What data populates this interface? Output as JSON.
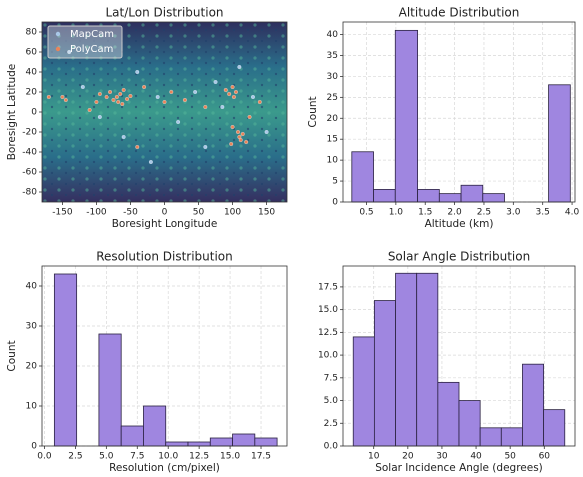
{
  "chart_data": [
    {
      "type": "scatter",
      "title": "Lat/Lon Distribution",
      "xlabel": "Boresight Longitude",
      "ylabel": "Boresight Latitude",
      "xlim": [
        -180,
        180
      ],
      "ylim": [
        -90,
        90
      ],
      "xticks": [
        -150,
        -100,
        -50,
        0,
        50,
        100,
        150
      ],
      "yticks": [
        -80,
        -60,
        -40,
        -20,
        0,
        20,
        40,
        60,
        80
      ],
      "grid": false,
      "legend": "upper left",
      "series": [
        {
          "name": "MapCam",
          "color": "#a9c8e8",
          "x": [
            -120,
            -95,
            -60,
            -40,
            -10,
            20,
            45,
            60,
            85,
            130,
            150,
            -140,
            -20,
            75,
            110
          ],
          "y": [
            25,
            -5,
            -25,
            40,
            15,
            -10,
            20,
            -35,
            5,
            15,
            -20,
            60,
            -50,
            30,
            45
          ]
        },
        {
          "name": "PolyCam",
          "color": "#e8845a",
          "x": [
            -150,
            -145,
            -100,
            -95,
            -85,
            -80,
            -75,
            -70,
            -68,
            -65,
            -62,
            -60,
            -55,
            -50,
            -110,
            -30,
            0,
            10,
            90,
            95,
            100,
            102,
            105,
            108,
            110,
            112,
            115,
            120,
            100,
            98,
            60,
            30,
            -170,
            140,
            125,
            -40
          ],
          "y": [
            15,
            12,
            10,
            18,
            15,
            20,
            12,
            15,
            10,
            18,
            8,
            22,
            13,
            16,
            2,
            25,
            10,
            20,
            22,
            18,
            25,
            15,
            20,
            -20,
            -25,
            -28,
            -22,
            -30,
            -15,
            -32,
            5,
            12,
            15,
            10,
            -5,
            -35
          ]
        }
      ]
    },
    {
      "type": "histogram",
      "title": "Altitude Distribution",
      "xlabel": "Altitude (km)",
      "ylabel": "Count",
      "bins": [
        0.25,
        0.62,
        0.99,
        1.37,
        1.74,
        2.11,
        2.48,
        2.85,
        3.23,
        3.6,
        3.97
      ],
      "values": [
        12,
        3,
        41,
        3,
        2,
        4,
        2,
        0,
        0,
        28
      ],
      "color": "#9f86e0",
      "xlim": [
        0.1,
        4.05
      ],
      "ylim": [
        0,
        43
      ],
      "xticks": [
        0.5,
        {
          "value": 1,
          "label": "1.0"
        },
        1.5,
        {
          "value": 2,
          "label": "2.0"
        },
        2.5,
        {
          "value": 3,
          "label": "3.0"
        },
        3.5,
        {
          "value": 4,
          "label": "4.0"
        }
      ],
      "yticks": [
        0,
        5,
        10,
        15,
        20,
        25,
        30,
        35,
        40
      ],
      "grid": true
    },
    {
      "type": "histogram",
      "title": "Resolution Distribution",
      "xlabel": "Resolution (cm/pixel)",
      "ylabel": "Count",
      "bins": [
        0.8,
        2.6,
        4.4,
        6.2,
        8.0,
        9.8,
        11.6,
        13.4,
        15.2,
        17.0,
        18.8
      ],
      "values": [
        43,
        0,
        28,
        5,
        10,
        1,
        1,
        2,
        3,
        2
      ],
      "color": "#9f86e0",
      "xlim": [
        -0.2,
        19.6
      ],
      "ylim": [
        0,
        45
      ],
      "xticks": [
        {
          "value": 0,
          "label": "0.0"
        },
        2.5,
        {
          "value": 5,
          "label": "5.0"
        },
        7.5,
        {
          "value": 10,
          "label": "10.0"
        },
        12.5,
        {
          "value": 15,
          "label": "15.0"
        },
        17.5
      ],
      "yticks": [
        0,
        10,
        20,
        30,
        40
      ],
      "grid": true
    },
    {
      "type": "histogram",
      "title": "Solar Angle Distribution",
      "xlabel": "Solar Incidence Angle (degrees)",
      "ylabel": "",
      "bins": [
        4,
        10.2,
        16.4,
        22.6,
        28.8,
        35,
        41.2,
        47.4,
        53.6,
        59.8,
        66
      ],
      "values": [
        12,
        16,
        19,
        19,
        7,
        5,
        2,
        2,
        9,
        4
      ],
      "color": "#9f86e0",
      "xlim": [
        1,
        69
      ],
      "ylim": [
        0,
        19.8
      ],
      "xticks": [
        10,
        20,
        30,
        40,
        50,
        60
      ],
      "yticks": [
        {
          "value": 0,
          "label": "0.0"
        },
        2.5,
        {
          "value": 5,
          "label": "5.0"
        },
        7.5,
        {
          "value": 10,
          "label": "10.0"
        },
        12.5,
        {
          "value": 15,
          "label": "15.0"
        },
        17.5
      ],
      "grid": true
    }
  ]
}
